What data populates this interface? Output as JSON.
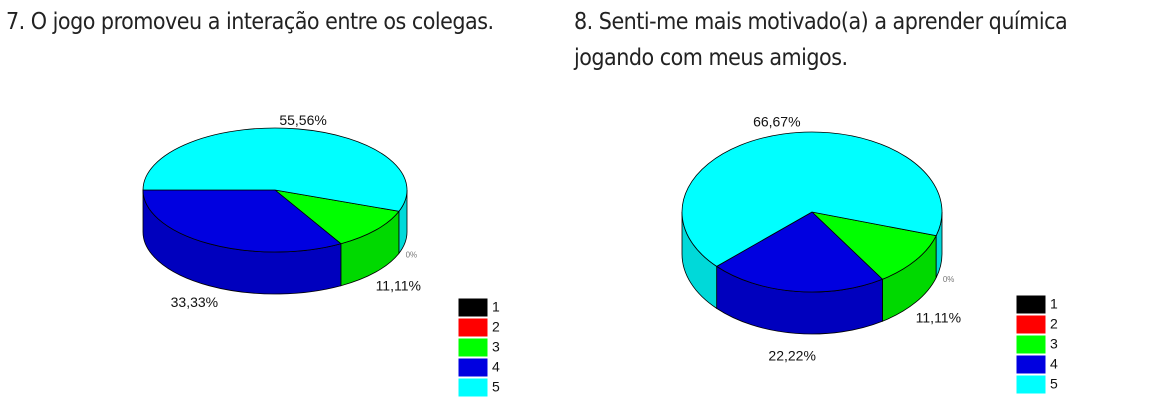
{
  "chart_data": [
    {
      "type": "pie",
      "title": "7. O jogo promoveu a interação entre os colegas.",
      "categories": [
        "1",
        "2",
        "3",
        "4",
        "5"
      ],
      "values": [
        0,
        0,
        11.11,
        33.33,
        55.56
      ],
      "value_labels": [
        null,
        "0%",
        "11,11%",
        "33,33%",
        "55,56%"
      ],
      "colors": [
        "#000000",
        "#ff0000",
        "#00ff00",
        "#0000e0",
        "#00ffff"
      ]
    },
    {
      "type": "pie",
      "title": "8. Senti-me mais motivado(a) a aprender química jogando com meus amigos.",
      "categories": [
        "1",
        "2",
        "3",
        "4",
        "5"
      ],
      "values": [
        0,
        0,
        11.11,
        22.22,
        66.67
      ],
      "value_labels": [
        null,
        "0%",
        "11,11%",
        "22,22%",
        "66,67%"
      ],
      "colors": [
        "#000000",
        "#ff0000",
        "#00ff00",
        "#0000e0",
        "#00ffff"
      ]
    }
  ]
}
